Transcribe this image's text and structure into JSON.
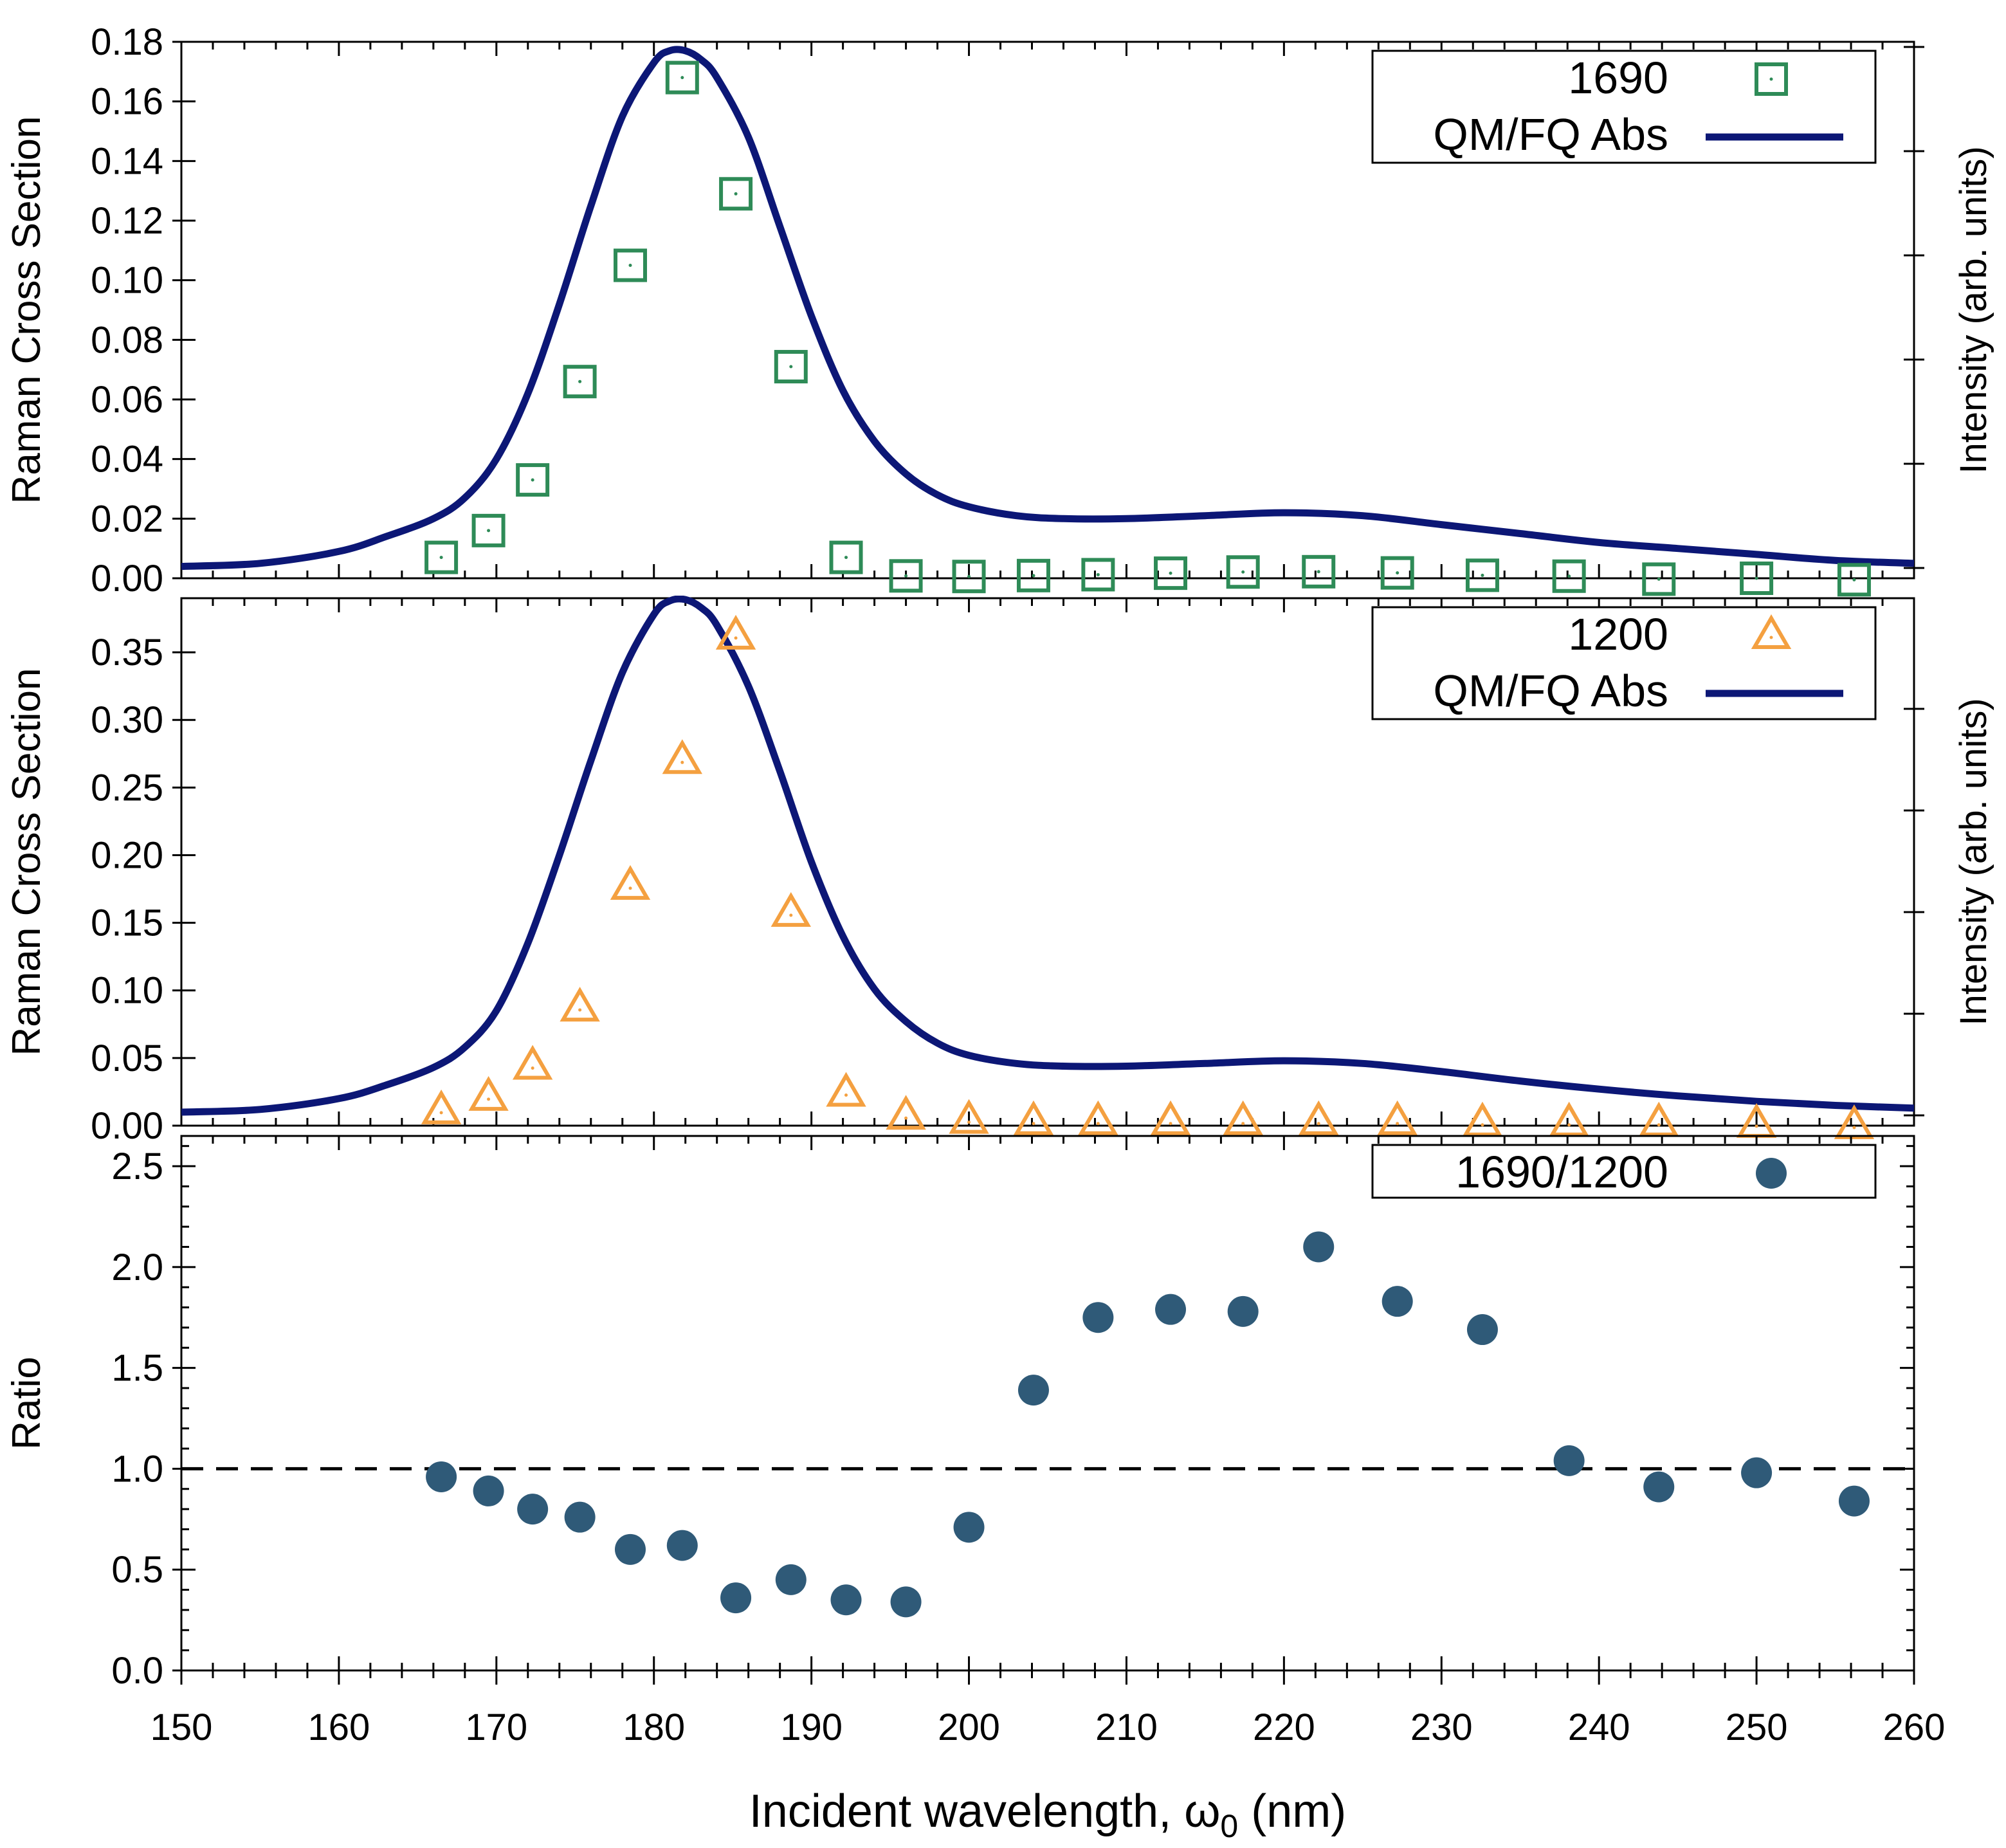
{
  "colors": {
    "sq": "#2e8b57",
    "tri": "#f4a040",
    "circ": "#2f5a78",
    "abs": "#0c1776",
    "axis": "#000000"
  },
  "chart_data": [
    {
      "type": "scatter",
      "panel": "top",
      "ylabel": "Raman Cross Section",
      "y2label": "Intensity (arb. units)",
      "xlim": [
        150,
        260
      ],
      "ylim": [
        0,
        0.18
      ],
      "yticks": [
        0.0,
        0.02,
        0.04,
        0.06,
        0.08,
        0.1,
        0.12,
        0.14,
        0.16,
        0.18
      ],
      "yticklabels": [
        "0.00",
        "0.02",
        "0.04",
        "0.06",
        "0.08",
        "0.10",
        "0.12",
        "0.14",
        "0.16",
        "0.18"
      ],
      "legend_position": "top-right",
      "series": [
        {
          "name": "1690",
          "marker": "open-square",
          "color": "#2e8b57",
          "x": [
            166.5,
            169.5,
            172.3,
            175.3,
            178.5,
            181.8,
            185.2,
            188.7,
            192.2,
            196.0,
            200.0,
            204.1,
            208.2,
            212.8,
            217.4,
            222.2,
            227.2,
            232.6,
            238.1,
            243.8,
            250.0,
            256.2
          ],
          "y": [
            0.007,
            0.016,
            0.033,
            0.066,
            0.105,
            0.168,
            0.129,
            0.071,
            0.007,
            0.0008,
            0.0006,
            0.0009,
            0.0012,
            0.0017,
            0.0021,
            0.0022,
            0.0018,
            0.001,
            0.0007,
            -0.0003,
            0.0,
            -0.0005
          ]
        },
        {
          "name": "QM/FQ Abs",
          "style": "line",
          "color": "#0c1776",
          "x": [
            150,
            155,
            160,
            163,
            166,
            168,
            170,
            172,
            174,
            176,
            178,
            180,
            181,
            182,
            183,
            184,
            186,
            188,
            190,
            192,
            194,
            196,
            198,
            200,
            203,
            206,
            210,
            215,
            220,
            225,
            230,
            235,
            240,
            245,
            250,
            255,
            260
          ],
          "y": [
            0.004,
            0.005,
            0.009,
            0.014,
            0.02,
            0.027,
            0.04,
            0.062,
            0.092,
            0.125,
            0.155,
            0.173,
            0.177,
            0.177,
            0.174,
            0.168,
            0.148,
            0.118,
            0.088,
            0.063,
            0.046,
            0.035,
            0.028,
            0.024,
            0.021,
            0.02,
            0.02,
            0.021,
            0.022,
            0.021,
            0.018,
            0.015,
            0.012,
            0.01,
            0.008,
            0.006,
            0.005
          ]
        }
      ]
    },
    {
      "type": "scatter",
      "panel": "middle",
      "ylabel": "Raman Cross Section",
      "y2label": "Intensity (arb. units)",
      "xlim": [
        150,
        260
      ],
      "ylim": [
        0,
        0.39
      ],
      "yticks": [
        0.0,
        0.05,
        0.1,
        0.15,
        0.2,
        0.25,
        0.3,
        0.35
      ],
      "yticklabels": [
        "0.00",
        "0.05",
        "0.10",
        "0.15",
        "0.20",
        "0.25",
        "0.30",
        "0.35"
      ],
      "legend_position": "top-right",
      "series": [
        {
          "name": "1200",
          "marker": "open-triangle",
          "color": "#f4a040",
          "x": [
            166.5,
            169.5,
            172.3,
            175.3,
            178.5,
            181.8,
            185.2,
            188.7,
            192.2,
            196.0,
            200.0,
            204.1,
            208.2,
            212.8,
            217.4,
            222.2,
            227.2,
            232.6,
            238.1,
            243.8,
            250.0,
            256.2
          ],
          "y": [
            0.011,
            0.021,
            0.044,
            0.087,
            0.177,
            0.27,
            0.362,
            0.157,
            0.024,
            0.007,
            0.004,
            0.003,
            0.003,
            0.003,
            0.003,
            0.003,
            0.003,
            0.002,
            0.002,
            0.002,
            0.001,
            0.0
          ]
        },
        {
          "name": "QM/FQ Abs",
          "style": "line",
          "color": "#0c1776",
          "x": [
            150,
            155,
            160,
            163,
            166,
            168,
            170,
            172,
            174,
            176,
            178,
            180,
            181,
            182,
            183,
            184,
            186,
            188,
            190,
            192,
            194,
            196,
            198,
            200,
            203,
            206,
            210,
            215,
            220,
            225,
            230,
            235,
            240,
            245,
            250,
            255,
            260
          ],
          "y": [
            0.01,
            0.012,
            0.02,
            0.03,
            0.043,
            0.058,
            0.085,
            0.135,
            0.2,
            0.27,
            0.335,
            0.378,
            0.388,
            0.389,
            0.383,
            0.37,
            0.325,
            0.262,
            0.195,
            0.14,
            0.101,
            0.077,
            0.061,
            0.052,
            0.046,
            0.044,
            0.044,
            0.046,
            0.048,
            0.046,
            0.04,
            0.033,
            0.027,
            0.022,
            0.018,
            0.015,
            0.013
          ]
        }
      ]
    },
    {
      "type": "scatter",
      "panel": "bottom",
      "xlabel": "Incident wavelength, ω₀ (nm)",
      "ylabel": "Ratio",
      "xlim": [
        150,
        260
      ],
      "ylim": [
        0,
        2.65
      ],
      "xticks": [
        150,
        160,
        170,
        180,
        190,
        200,
        210,
        220,
        230,
        240,
        250,
        260
      ],
      "xticklabels": [
        "150",
        "160",
        "170",
        "180",
        "190",
        "200",
        "210",
        "220",
        "230",
        "240",
        "250",
        "260"
      ],
      "yticks": [
        0.0,
        0.5,
        1.0,
        1.5,
        2.0,
        2.5
      ],
      "yticklabels": [
        "0.0",
        "0.5",
        "1.0",
        "1.5",
        "2.0",
        "2.5"
      ],
      "reference_line": {
        "y": 1.0,
        "style": "dashed"
      },
      "legend_position": "top-right",
      "series": [
        {
          "name": "1690/1200",
          "marker": "filled-circle",
          "color": "#2f5a78",
          "x": [
            166.5,
            169.5,
            172.3,
            175.3,
            178.5,
            181.8,
            185.2,
            188.7,
            192.2,
            196.0,
            200.0,
            204.1,
            208.2,
            212.8,
            217.4,
            222.2,
            227.2,
            232.6,
            238.1,
            243.8,
            250.0,
            256.2
          ],
          "y": [
            0.96,
            0.89,
            0.8,
            0.76,
            0.6,
            0.62,
            0.36,
            0.45,
            0.35,
            0.34,
            0.71,
            1.39,
            1.75,
            1.79,
            1.78,
            2.1,
            1.83,
            1.69,
            1.04,
            0.91,
            0.98,
            0.84
          ]
        }
      ]
    }
  ]
}
